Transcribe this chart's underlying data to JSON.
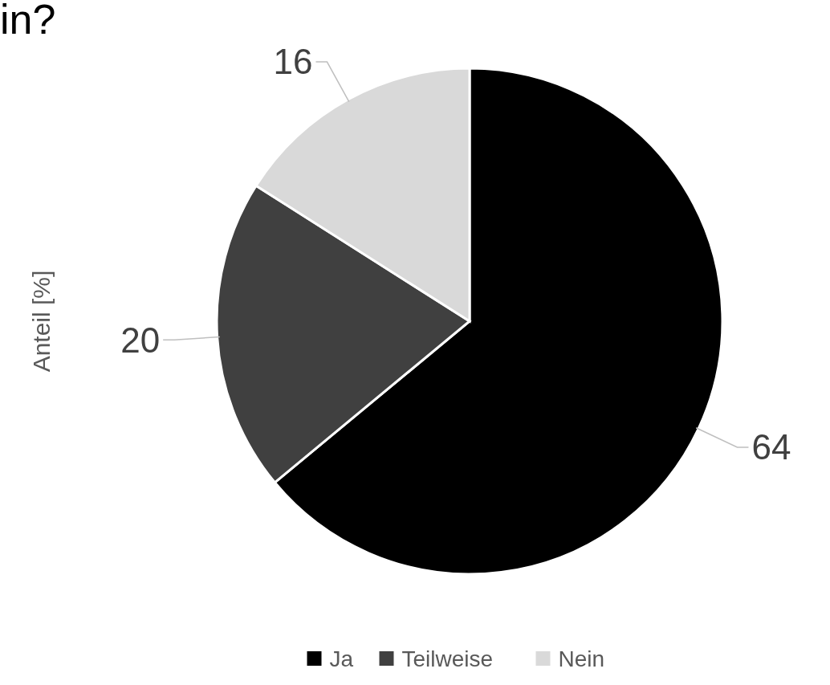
{
  "chart_data": {
    "type": "pie",
    "title": "in?",
    "ylabel": "Anteil [%]",
    "categories": [
      "Ja",
      "Teilweise",
      "Nein"
    ],
    "values": [
      64,
      20,
      16
    ],
    "colors": [
      "#000000",
      "#404040",
      "#d9d9d9"
    ],
    "data_labels": true,
    "legend": "bottom"
  }
}
